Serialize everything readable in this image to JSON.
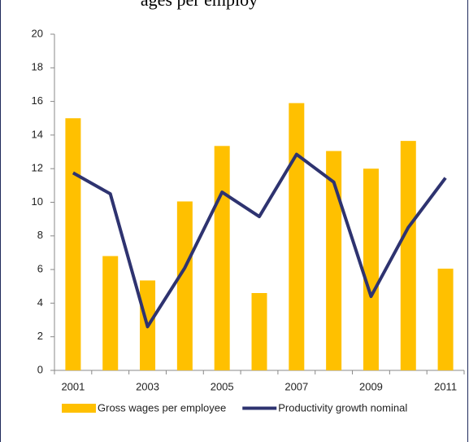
{
  "chart_data": {
    "type": "bar_line",
    "title": "ages per employ",
    "categories": [
      "2001",
      null,
      "2003",
      null,
      "2005",
      null,
      "2007",
      null,
      "2009",
      null,
      "2011"
    ],
    "series": [
      {
        "name": "Gross wages per employee",
        "type": "bar",
        "color": "#ffc000",
        "values": [
          15,
          6.8,
          5.35,
          10.05,
          13.35,
          4.6,
          15.9,
          13.05,
          12,
          13.65,
          6.05
        ]
      },
      {
        "name": "Productivity  growth nominal",
        "type": "line",
        "color": "#2e3370",
        "values": [
          11.75,
          10.5,
          2.6,
          6.1,
          10.6,
          9.15,
          12.85,
          11.2,
          4.4,
          8.5,
          11.45
        ]
      }
    ],
    "ylim": [
      0,
      20
    ],
    "yticks": [
      0,
      2,
      4,
      6,
      8,
      10,
      12,
      14,
      16,
      18,
      20
    ]
  }
}
